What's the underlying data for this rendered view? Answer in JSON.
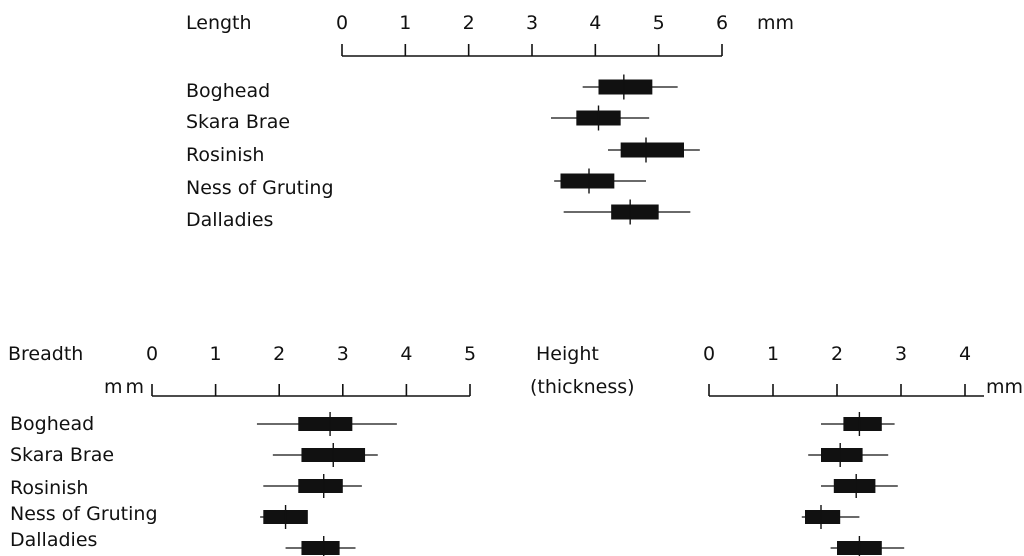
{
  "colors": {
    "ink": "#111111",
    "background": "#ffffff"
  },
  "chart_data": [
    {
      "type": "box",
      "axis_title": "Length",
      "unit": "mm",
      "ticks": [
        0,
        1,
        2,
        3,
        4,
        5,
        6
      ],
      "tick_labels": [
        "0",
        "1",
        "2",
        "3",
        "4",
        "5",
        "6"
      ],
      "xlim": [
        0,
        6
      ],
      "categories": [
        "Boghead",
        "Skara Brae",
        "Rosinish",
        "Ness of Gruting",
        "Dalladies"
      ],
      "series": [
        {
          "category": "Boghead",
          "range": [
            3.8,
            5.3
          ],
          "box": [
            4.05,
            4.9
          ],
          "mean": 4.45
        },
        {
          "category": "Skara Brae",
          "range": [
            3.3,
            4.85
          ],
          "box": [
            3.7,
            4.4
          ],
          "mean": 4.05
        },
        {
          "category": "Rosinish",
          "range": [
            4.2,
            5.65
          ],
          "box": [
            4.4,
            5.4
          ],
          "mean": 4.8
        },
        {
          "category": "Ness of Gruting",
          "range": [
            3.35,
            4.8
          ],
          "box": [
            3.45,
            4.3
          ],
          "mean": 3.9
        },
        {
          "category": "Dalladies",
          "range": [
            3.5,
            5.5
          ],
          "box": [
            4.25,
            5.0
          ],
          "mean": 4.55
        }
      ]
    },
    {
      "type": "box",
      "axis_title": "Breadth",
      "unit": "mm",
      "ticks": [
        0,
        1,
        2,
        3,
        4,
        5
      ],
      "tick_labels": [
        "0",
        "1",
        "2",
        "3",
        "4",
        "5"
      ],
      "xlim": [
        0,
        5
      ],
      "categories": [
        "Boghead",
        "Skara Brae",
        "Rosinish",
        "Ness of Gruting",
        "Dalladies"
      ],
      "series": [
        {
          "category": "Boghead",
          "range": [
            1.65,
            3.85
          ],
          "box": [
            2.3,
            3.15
          ],
          "mean": 2.8
        },
        {
          "category": "Skara Brae",
          "range": [
            1.9,
            3.55
          ],
          "box": [
            2.35,
            3.35
          ],
          "mean": 2.85
        },
        {
          "category": "Rosinish",
          "range": [
            1.75,
            3.3
          ],
          "box": [
            2.3,
            3.0
          ],
          "mean": 2.7
        },
        {
          "category": "Ness of Gruting",
          "range": [
            1.7,
            2.4
          ],
          "box": [
            1.75,
            2.45
          ],
          "mean": 2.1
        },
        {
          "category": "Dalladies",
          "range": [
            2.1,
            3.2
          ],
          "box": [
            2.35,
            2.95
          ],
          "mean": 2.7
        }
      ]
    },
    {
      "type": "box",
      "axis_title": "Height",
      "axis_subtitle": "(thickness)",
      "unit": "mm",
      "ticks": [
        0,
        1,
        2,
        3,
        4
      ],
      "tick_labels": [
        "0",
        "1",
        "2",
        "3",
        "4"
      ],
      "xlim": [
        0,
        4
      ],
      "categories": [
        "Boghead",
        "Skara Brae",
        "Rosinish",
        "Ness of Gruting",
        "Dalladies"
      ],
      "series": [
        {
          "category": "Boghead",
          "range": [
            1.75,
            2.9
          ],
          "box": [
            2.1,
            2.7
          ],
          "mean": 2.35
        },
        {
          "category": "Skara Brae",
          "range": [
            1.55,
            2.8
          ],
          "box": [
            1.75,
            2.4
          ],
          "mean": 2.05
        },
        {
          "category": "Rosinish",
          "range": [
            1.75,
            2.95
          ],
          "box": [
            1.95,
            2.6
          ],
          "mean": 2.3
        },
        {
          "category": "Ness of Gruting",
          "range": [
            1.45,
            2.35
          ],
          "box": [
            1.5,
            2.05
          ],
          "mean": 1.75
        },
        {
          "category": "Dalladies",
          "range": [
            1.9,
            3.05
          ],
          "box": [
            2.0,
            2.7
          ],
          "mean": 2.35
        }
      ]
    }
  ]
}
